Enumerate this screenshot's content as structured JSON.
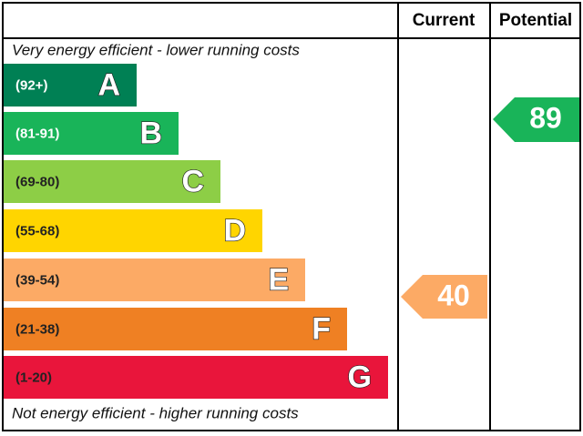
{
  "header": {
    "current": "Current",
    "potential": "Potential"
  },
  "top_note": "Very energy efficient - lower running costs",
  "bottom_note": "Not energy efficient - higher running costs",
  "bands": [
    {
      "range": "(92+)",
      "letter": "A",
      "color": "#008054"
    },
    {
      "range": "(81-91)",
      "letter": "B",
      "color": "#19b459"
    },
    {
      "range": "(69-80)",
      "letter": "C",
      "color": "#8dce46"
    },
    {
      "range": "(55-68)",
      "letter": "D",
      "color": "#ffd500"
    },
    {
      "range": "(39-54)",
      "letter": "E",
      "color": "#fcaa65"
    },
    {
      "range": "(21-38)",
      "letter": "F",
      "color": "#ef8023"
    },
    {
      "range": "(1-20)",
      "letter": "G",
      "color": "#e9153b"
    }
  ],
  "current": {
    "value": 40,
    "color": "#fcaa65"
  },
  "potential": {
    "value": 89,
    "color": "#19b459"
  }
}
